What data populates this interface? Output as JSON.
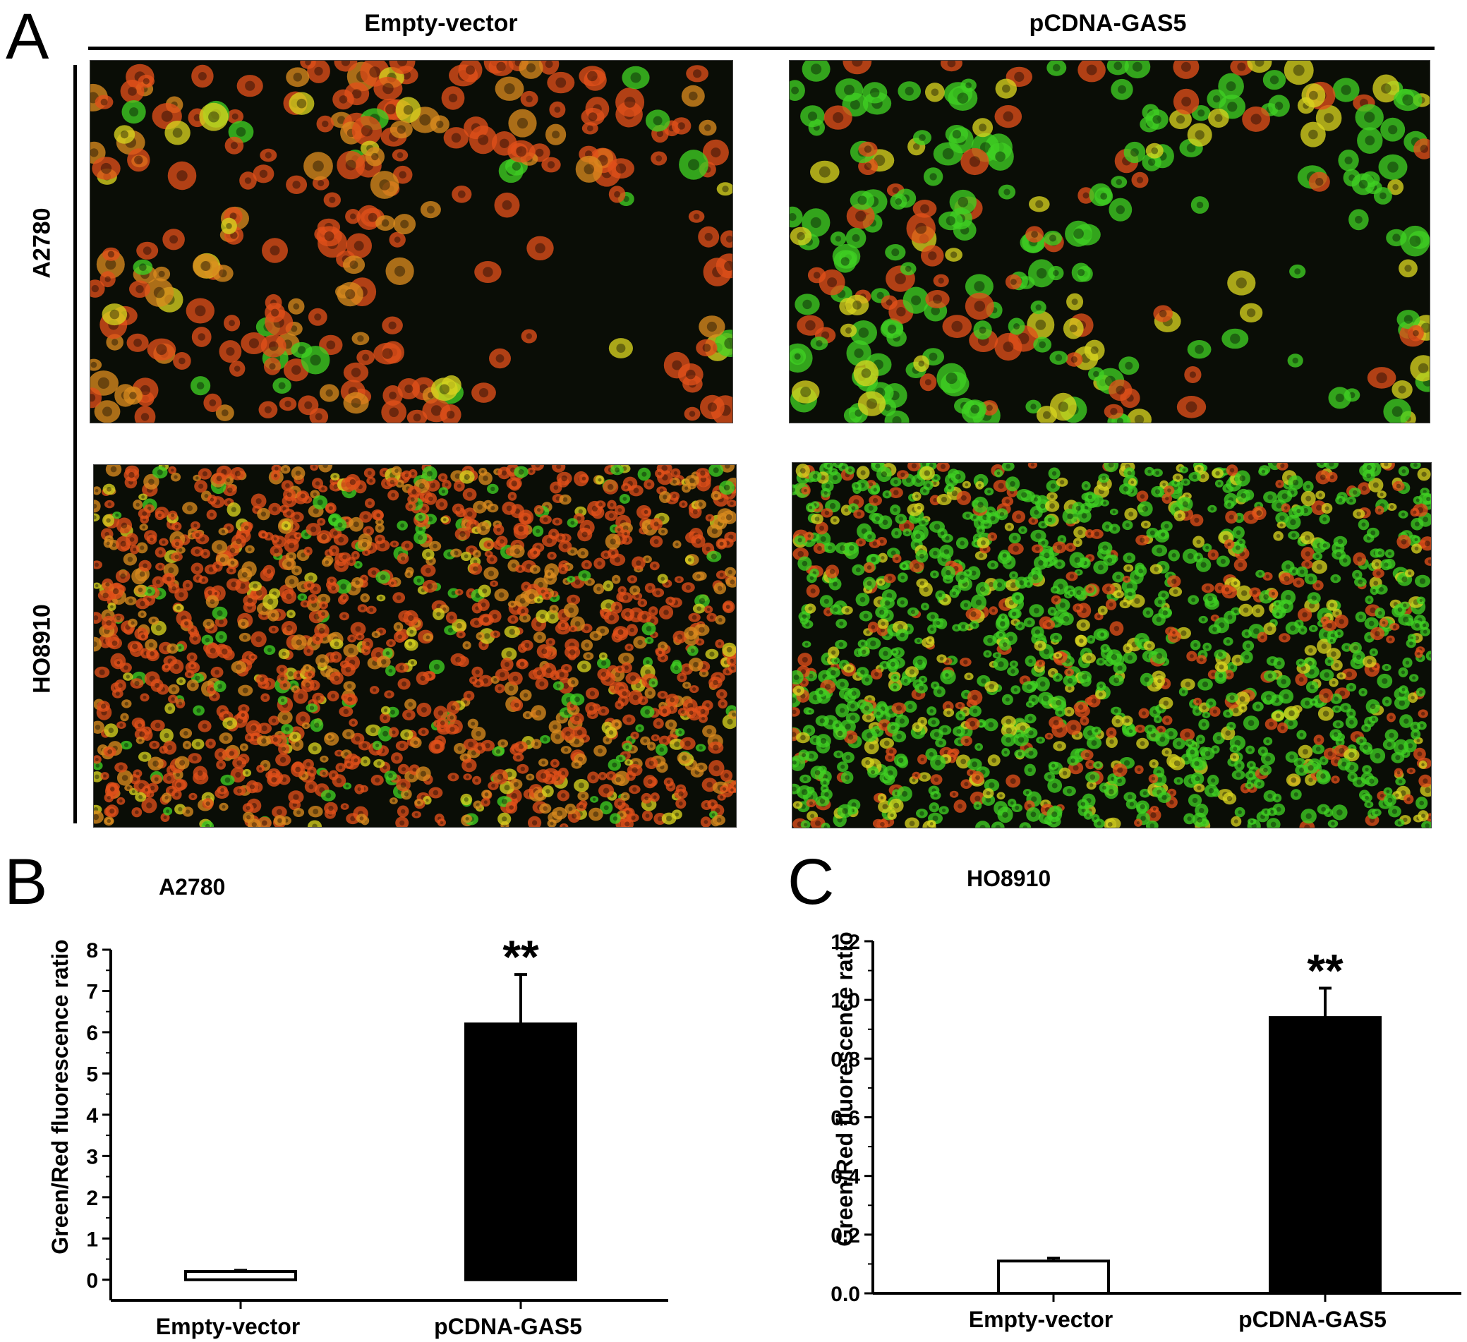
{
  "panel_a": {
    "letter": "A",
    "columns": [
      "Empty-vector",
      "pCDNA-GAS5"
    ],
    "rows": [
      "A2780",
      "HO8910"
    ],
    "images": [
      {
        "row": "A2780",
        "column": "Empty-vector",
        "dominant": "red-orange",
        "density": "sparse"
      },
      {
        "row": "A2780",
        "column": "pCDNA-GAS5",
        "dominant": "green",
        "density": "sparse"
      },
      {
        "row": "HO8910",
        "column": "Empty-vector",
        "dominant": "red-orange",
        "density": "dense"
      },
      {
        "row": "HO8910",
        "column": "pCDNA-GAS5",
        "dominant": "green",
        "density": "dense"
      }
    ],
    "colors": {
      "background": "#0a0d06",
      "red": "#e0501a",
      "orange": "#d98a1e",
      "green": "#3fcf22",
      "yellow": "#d7d41f"
    }
  },
  "chart_data": [
    {
      "panel": "B",
      "type": "bar",
      "title": "A2780",
      "ylabel": "Green/Red fluorescence ratio",
      "xlabel": "",
      "categories": [
        "Empty-vector",
        "pCDNA-GAS5"
      ],
      "values": [
        0.2,
        6.2
      ],
      "errors": [
        0.03,
        1.2
      ],
      "significance": [
        "",
        "**"
      ],
      "ylim": [
        -0.5,
        8
      ],
      "yticks": [
        0,
        1,
        2,
        3,
        4,
        5,
        6,
        7,
        8
      ],
      "ytick_labels": [
        "0",
        "1",
        "2",
        "3",
        "4",
        "5",
        "6",
        "7",
        "8"
      ],
      "bar_fill": [
        "#ffffff",
        "#000000"
      ],
      "grid": false
    },
    {
      "panel": "C",
      "type": "bar",
      "title": "HO8910",
      "ylabel": "Green/Red fluorescence ratio",
      "xlabel": "",
      "categories": [
        "Empty-vector",
        "pCDNA-GAS5"
      ],
      "values": [
        0.11,
        0.94
      ],
      "errors": [
        0.01,
        0.1
      ],
      "significance": [
        "",
        "**"
      ],
      "ylim": [
        0,
        1.2
      ],
      "yticks": [
        0,
        0.2,
        0.4,
        0.6,
        0.8,
        1.0,
        1.2
      ],
      "ytick_labels": [
        "0.0",
        "0.2",
        "0.4",
        "0.6",
        "0.8",
        "1.0",
        "1.2"
      ],
      "bar_fill": [
        "#ffffff",
        "#000000"
      ],
      "grid": false
    }
  ]
}
